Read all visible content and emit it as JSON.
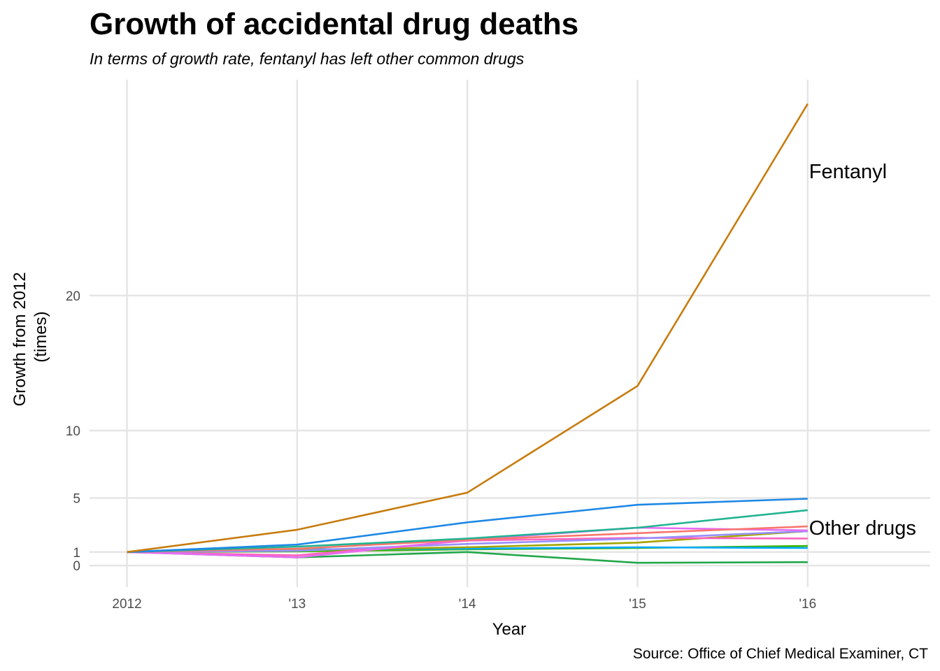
{
  "chart_data": {
    "type": "line",
    "title": "Growth of accidental drug deaths",
    "subtitle": "In terms of growth rate, fentanyl has left other common drugs",
    "xlabel": "Year",
    "ylabel_lines": [
      "Growth from 2012",
      "(times)"
    ],
    "caption": "Source: Office of Chief Medical Examiner, CT",
    "x": [
      2012,
      2013,
      2014,
      2015,
      2016
    ],
    "x_tick_labels": [
      "2012",
      "'13",
      "'14",
      "'15",
      "'16"
    ],
    "xlim": [
      2011.78,
      2016.72
    ],
    "y_ticks": [
      0,
      1,
      5,
      10,
      20
    ],
    "y_tick_labels": [
      "0",
      "1",
      "5",
      "10",
      "20"
    ],
    "ylim": [
      -1.6,
      36.2
    ],
    "grid": true,
    "legend": "none",
    "annotations": [
      {
        "text": "Fentanyl",
        "x": 2016,
        "y": 29.2
      },
      {
        "text": "Other drugs",
        "x": 2016,
        "y": 2.8
      }
    ],
    "series": [
      {
        "color": "#C77C0E",
        "values": [
          1,
          2.65,
          5.4,
          13.3,
          34.2
        ]
      },
      {
        "color": "#1E88E5",
        "values": [
          1,
          1.55,
          3.2,
          4.5,
          4.95
        ]
      },
      {
        "color": "#21B392",
        "values": [
          1,
          1.4,
          2.0,
          2.8,
          4.1
        ]
      },
      {
        "color": "#F8766D",
        "values": [
          1,
          1.25,
          1.9,
          2.4,
          2.9
        ]
      },
      {
        "color": "#E76BF3",
        "values": [
          1,
          0.6,
          1.9,
          2.8,
          2.6
        ]
      },
      {
        "color": "#9590FF",
        "values": [
          1,
          1.1,
          1.6,
          2.0,
          2.55
        ]
      },
      {
        "color": "#FF62BC",
        "values": [
          1,
          0.75,
          1.85,
          2.05,
          2.0
        ]
      },
      {
        "color": "#A3A500",
        "values": [
          1,
          1.15,
          1.35,
          1.7,
          2.55
        ]
      },
      {
        "color": "#00A9FF",
        "values": [
          1,
          1.2,
          1.25,
          1.35,
          1.3
        ]
      },
      {
        "color": "#39B600",
        "values": [
          1,
          1.05,
          1.2,
          1.3,
          1.45
        ]
      },
      {
        "color": "#22A74A",
        "values": [
          1,
          0.6,
          1.0,
          0.2,
          0.25
        ]
      }
    ]
  }
}
